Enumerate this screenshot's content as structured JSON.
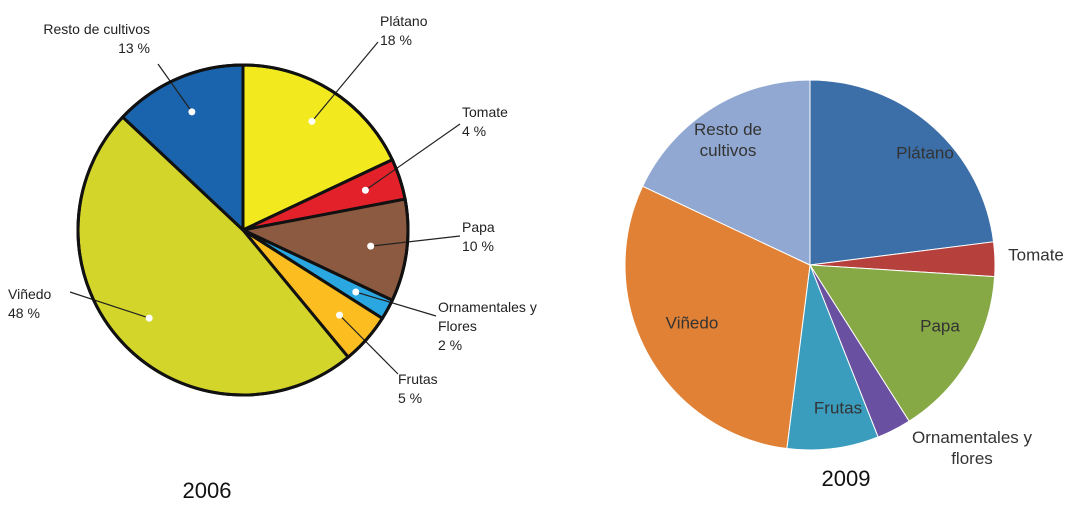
{
  "chart_data": [
    {
      "type": "pie",
      "title": "2006",
      "categories": [
        "Plátano",
        "Tomate",
        "Papa",
        "Ornamentales y Flores",
        "Frutas",
        "Viñedo",
        "Resto de cultivos"
      ],
      "values": [
        18,
        4,
        10,
        2,
        5,
        48,
        13
      ],
      "value_labels": [
        "18 %",
        "4 %",
        "10 %",
        "2 %",
        "5 %",
        "48 %",
        "13 %"
      ],
      "colors": [
        "#f2ea1f",
        "#e3212a",
        "#8b5a40",
        "#2aa6e0",
        "#fbbd1f",
        "#d4d52a",
        "#1a63ad"
      ]
    },
    {
      "type": "pie",
      "title": "2009",
      "categories": [
        "Plátano",
        "Tomate",
        "Papa",
        "Ornamentales y flores",
        "Frutas",
        "Viñedo",
        "Resto de cultivos"
      ],
      "values": [
        23,
        3,
        15,
        3,
        8,
        30,
        18
      ],
      "colors": [
        "#3c6ea8",
        "#b5403c",
        "#86a845",
        "#6a50a0",
        "#3a9dbd",
        "#e08135",
        "#91a9d2"
      ]
    }
  ]
}
